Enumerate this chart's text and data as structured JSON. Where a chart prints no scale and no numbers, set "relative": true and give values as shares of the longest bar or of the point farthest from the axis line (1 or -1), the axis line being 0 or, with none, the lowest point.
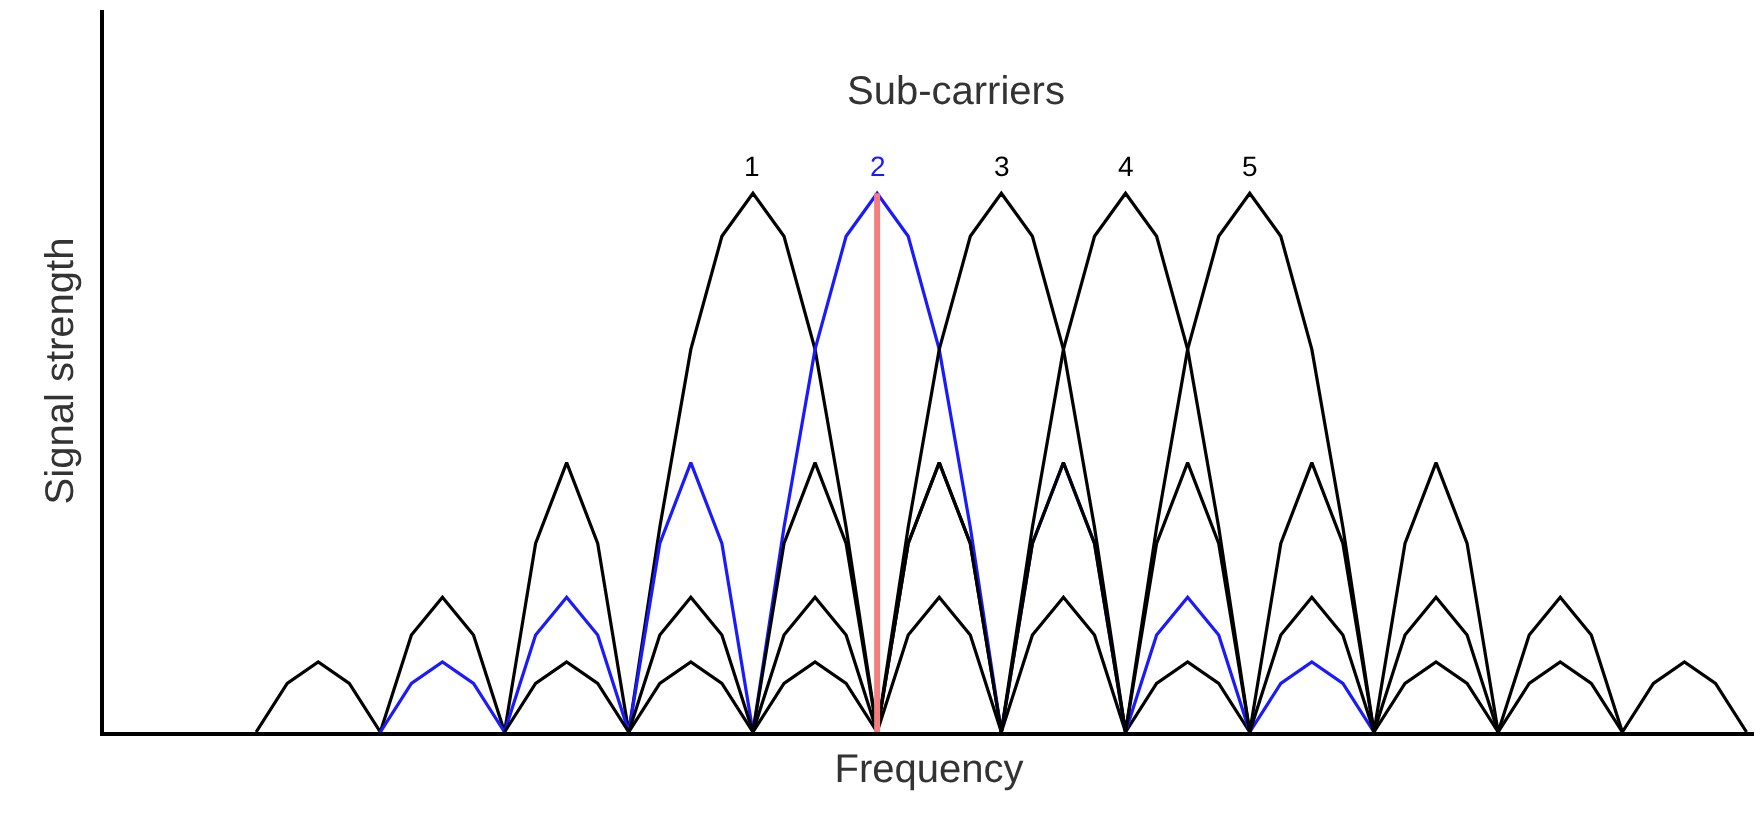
{
  "chart_data": {
    "type": "line",
    "title": "Sub-carriers",
    "xlabel": "Frequency",
    "ylabel": "Signal strength",
    "relative": true,
    "legend": false,
    "categories": [
      null,
      null,
      null,
      null,
      null,
      null,
      null,
      null,
      null,
      null,
      null,
      null,
      null,
      null,
      null,
      null,
      null,
      null,
      null,
      null,
      null,
      null,
      null,
      null,
      null,
      null,
      null,
      null,
      null,
      null,
      null,
      null,
      null,
      null,
      null,
      null,
      null,
      null,
      null,
      null,
      null,
      null,
      null,
      null,
      null,
      null,
      null,
      null,
      null
    ],
    "series": [
      {
        "name": "1",
        "color": "#000000",
        "values": [
          0,
          0.09,
          0.13,
          0.09,
          0,
          0.18,
          0.25,
          0.18,
          0,
          0.35,
          0.5,
          0.35,
          0,
          0.38,
          0.71,
          0.92,
          1,
          0.92,
          0.71,
          0.38,
          0,
          0.35,
          0.5,
          0.35,
          0,
          0.18,
          0.25,
          0.18,
          0,
          0.09,
          0.13,
          0.09,
          0,
          null,
          null,
          null,
          null,
          null,
          null,
          null,
          null,
          null,
          null,
          null,
          null,
          null,
          null,
          null,
          null
        ]
      },
      {
        "name": "2",
        "color": "#1a1aff",
        "values": [
          null,
          null,
          null,
          null,
          0,
          0.09,
          0.13,
          0.09,
          0,
          0.18,
          0.25,
          0.18,
          0,
          0.35,
          0.5,
          0.35,
          0,
          0.38,
          0.71,
          0.92,
          1,
          0.92,
          0.71,
          0.38,
          0,
          0.35,
          0.5,
          0.35,
          0,
          0.18,
          0.25,
          0.18,
          0,
          0.09,
          0.13,
          0.09,
          0,
          null,
          null,
          null,
          null,
          null,
          null,
          null,
          null,
          null,
          null,
          null,
          null
        ]
      },
      {
        "name": "3",
        "color": "#000000",
        "values": [
          null,
          null,
          null,
          null,
          null,
          null,
          null,
          null,
          0,
          0.09,
          0.13,
          0.09,
          0,
          0.18,
          0.25,
          0.18,
          0,
          0.35,
          0.5,
          0.35,
          0,
          0.38,
          0.71,
          0.92,
          1,
          0.92,
          0.71,
          0.38,
          0,
          0.35,
          0.5,
          0.35,
          0,
          0.18,
          0.25,
          0.18,
          0,
          0.09,
          0.13,
          0.09,
          0,
          null,
          null,
          null,
          null,
          null,
          null,
          null,
          null
        ]
      },
      {
        "name": "4",
        "color": "#000000",
        "values": [
          null,
          null,
          null,
          null,
          null,
          null,
          null,
          null,
          null,
          null,
          null,
          null,
          0,
          0.09,
          0.13,
          0.09,
          0,
          0.18,
          0.25,
          0.18,
          0,
          0.35,
          0.5,
          0.35,
          0,
          0.38,
          0.71,
          0.92,
          1,
          0.92,
          0.71,
          0.38,
          0,
          0.35,
          0.5,
          0.35,
          0,
          0.18,
          0.25,
          0.18,
          0,
          0.09,
          0.13,
          0.09,
          0,
          null,
          null,
          null,
          null
        ]
      },
      {
        "name": "5",
        "color": "#000000",
        "values": [
          null,
          null,
          null,
          null,
          null,
          null,
          null,
          null,
          null,
          null,
          null,
          null,
          null,
          null,
          null,
          null,
          0,
          0.09,
          0.13,
          0.09,
          0,
          0.18,
          0.25,
          0.18,
          0,
          0.35,
          0.5,
          0.35,
          0,
          0.38,
          0.71,
          0.92,
          1,
          0.92,
          0.71,
          0.38,
          0,
          0.35,
          0.5,
          0.35,
          0,
          0.18,
          0.25,
          0.18,
          0,
          0.09,
          0.13,
          0.09,
          0
        ]
      }
    ]
  }
}
